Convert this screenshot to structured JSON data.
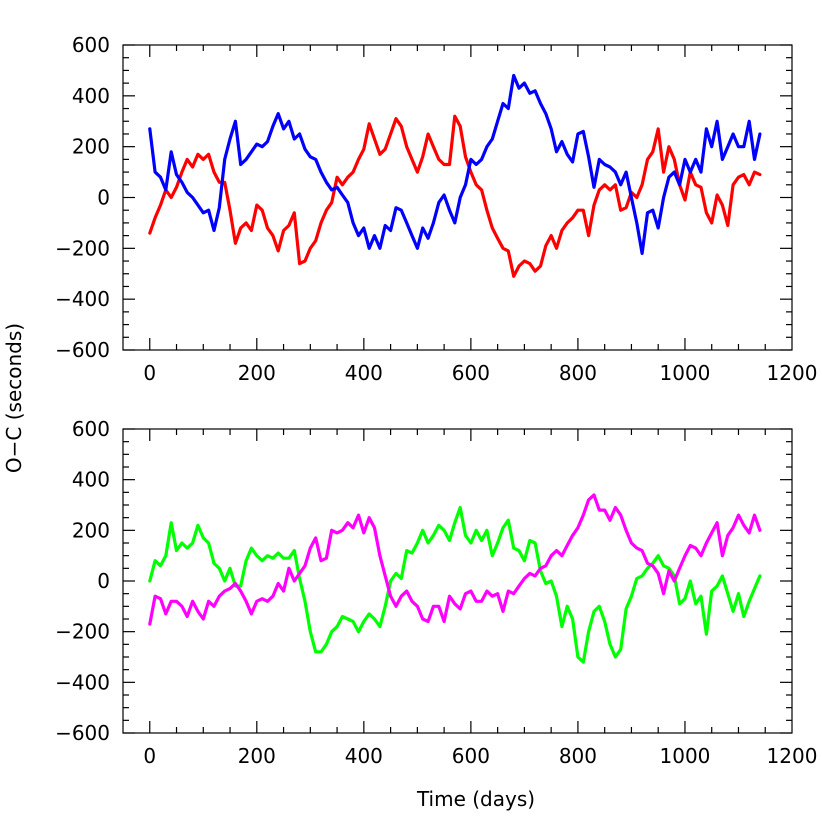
{
  "y_axis_title": "O−C  (seconds)",
  "chart_data": [
    {
      "type": "line",
      "title": "",
      "xlabel": "",
      "ylabel": "O−C  (seconds)",
      "xlim": [
        -50,
        1200
      ],
      "ylim": [
        -600,
        600
      ],
      "xticks": [
        "0",
        "200",
        "400",
        "600",
        "800",
        "1000",
        "1200"
      ],
      "yticks": [
        "−600",
        "−400",
        "−200",
        "0",
        "200",
        "400",
        "600"
      ],
      "grid": false,
      "series": [
        {
          "color": "#ff0000",
          "x": [
            0,
            10,
            20,
            30,
            40,
            50,
            60,
            70,
            80,
            90,
            100,
            110,
            120,
            130,
            140,
            150,
            160,
            170,
            180,
            190,
            200,
            210,
            220,
            230,
            240,
            250,
            260,
            270,
            280,
            290,
            300,
            310,
            320,
            330,
            340,
            350,
            360,
            370,
            380,
            390,
            400,
            410,
            420,
            430,
            440,
            450,
            460,
            470,
            480,
            490,
            500,
            510,
            520,
            530,
            540,
            550,
            560,
            570,
            580,
            590,
            600,
            610,
            620,
            630,
            640,
            650,
            660,
            670,
            680,
            690,
            700,
            710,
            720,
            730,
            740,
            750,
            760,
            770,
            780,
            790,
            800,
            810,
            820,
            830,
            840,
            850,
            860,
            870,
            880,
            890,
            900,
            910,
            920,
            930,
            940,
            950,
            960,
            970,
            980,
            990,
            1000,
            1010,
            1020,
            1030,
            1040,
            1050,
            1060,
            1070,
            1080,
            1090,
            1100,
            1110,
            1120,
            1130,
            1140
          ],
          "y": [
            -140,
            -80,
            -30,
            30,
            0,
            40,
            100,
            150,
            120,
            170,
            150,
            170,
            100,
            60,
            60,
            -50,
            -180,
            -120,
            -100,
            -130,
            -30,
            -50,
            -120,
            -150,
            -210,
            -130,
            -110,
            -60,
            -260,
            -250,
            -200,
            -170,
            -100,
            -50,
            -20,
            80,
            50,
            80,
            100,
            150,
            190,
            290,
            230,
            170,
            190,
            250,
            310,
            280,
            200,
            150,
            100,
            160,
            250,
            200,
            150,
            130,
            130,
            320,
            280,
            160,
            100,
            50,
            30,
            -50,
            -120,
            -160,
            -200,
            -210,
            -310,
            -270,
            -250,
            -260,
            -290,
            -270,
            -190,
            -150,
            -200,
            -130,
            -100,
            -80,
            -50,
            -50,
            -150,
            -30,
            30,
            50,
            30,
            50,
            -50,
            -40,
            20,
            0,
            50,
            150,
            180,
            270,
            100,
            200,
            150,
            50,
            -10,
            100,
            50,
            40,
            -60,
            -100,
            10,
            -30,
            -110,
            50,
            80,
            90,
            50,
            100,
            90
          ]
        },
        {
          "color": "#0000ff",
          "x": [
            0,
            10,
            20,
            30,
            40,
            50,
            60,
            70,
            80,
            90,
            100,
            110,
            120,
            130,
            140,
            150,
            160,
            170,
            180,
            190,
            200,
            210,
            220,
            230,
            240,
            250,
            260,
            270,
            280,
            290,
            300,
            310,
            320,
            330,
            340,
            350,
            360,
            370,
            380,
            390,
            400,
            410,
            420,
            430,
            440,
            450,
            460,
            470,
            480,
            490,
            500,
            510,
            520,
            530,
            540,
            550,
            560,
            570,
            580,
            590,
            600,
            610,
            620,
            630,
            640,
            650,
            660,
            670,
            680,
            690,
            700,
            710,
            720,
            730,
            740,
            750,
            760,
            770,
            780,
            790,
            800,
            810,
            820,
            830,
            840,
            850,
            860,
            870,
            880,
            890,
            900,
            910,
            920,
            930,
            940,
            950,
            960,
            970,
            980,
            990,
            1000,
            1010,
            1020,
            1030,
            1040,
            1050,
            1060,
            1070,
            1080,
            1090,
            1100,
            1110,
            1120,
            1130,
            1140
          ],
          "y": [
            270,
            100,
            80,
            30,
            180,
            90,
            60,
            20,
            0,
            -30,
            -60,
            -50,
            -130,
            -40,
            150,
            230,
            300,
            130,
            150,
            180,
            210,
            200,
            220,
            280,
            330,
            270,
            300,
            230,
            250,
            190,
            160,
            150,
            100,
            60,
            30,
            40,
            10,
            -20,
            -100,
            -150,
            -120,
            -200,
            -150,
            -200,
            -110,
            -130,
            -40,
            -50,
            -100,
            -150,
            -200,
            -120,
            -160,
            -100,
            -20,
            10,
            -50,
            -100,
            0,
            50,
            150,
            130,
            150,
            200,
            230,
            300,
            370,
            350,
            480,
            430,
            450,
            410,
            420,
            370,
            330,
            270,
            180,
            220,
            170,
            140,
            250,
            260,
            160,
            40,
            150,
            130,
            120,
            100,
            50,
            100,
            0,
            -100,
            -220,
            -60,
            -50,
            -120,
            0,
            80,
            100,
            50,
            150,
            100,
            150,
            100,
            270,
            200,
            300,
            150,
            200,
            250,
            200,
            200,
            300,
            150,
            250
          ]
        }
      ]
    },
    {
      "type": "line",
      "title": "",
      "xlabel": "Time  (days)",
      "ylabel": "O−C  (seconds)",
      "xlim": [
        -50,
        1200
      ],
      "ylim": [
        -600,
        600
      ],
      "xticks": [
        "0",
        "200",
        "400",
        "600",
        "800",
        "1000",
        "1200"
      ],
      "yticks": [
        "−600",
        "−400",
        "−200",
        "0",
        "200",
        "400",
        "600"
      ],
      "grid": false,
      "series": [
        {
          "color": "#00ff00",
          "x": [
            0,
            10,
            20,
            30,
            40,
            50,
            60,
            70,
            80,
            90,
            100,
            110,
            120,
            130,
            140,
            150,
            160,
            170,
            180,
            190,
            200,
            210,
            220,
            230,
            240,
            250,
            260,
            270,
            280,
            290,
            300,
            310,
            320,
            330,
            340,
            350,
            360,
            370,
            380,
            390,
            400,
            410,
            420,
            430,
            440,
            450,
            460,
            470,
            480,
            490,
            500,
            510,
            520,
            530,
            540,
            550,
            560,
            570,
            580,
            590,
            600,
            610,
            620,
            630,
            640,
            650,
            660,
            670,
            680,
            690,
            700,
            710,
            720,
            730,
            740,
            750,
            760,
            770,
            780,
            790,
            800,
            810,
            820,
            830,
            840,
            850,
            860,
            870,
            880,
            890,
            900,
            910,
            920,
            930,
            940,
            950,
            960,
            970,
            980,
            990,
            1000,
            1010,
            1020,
            1030,
            1040,
            1050,
            1060,
            1070,
            1080,
            1090,
            1100,
            1110,
            1120,
            1130,
            1140
          ],
          "y": [
            0,
            80,
            60,
            100,
            230,
            120,
            150,
            130,
            150,
            220,
            170,
            150,
            70,
            50,
            0,
            50,
            -20,
            -20,
            80,
            130,
            100,
            80,
            100,
            90,
            110,
            90,
            90,
            120,
            10,
            -80,
            -200,
            -280,
            -280,
            -250,
            -200,
            -180,
            -140,
            -150,
            -160,
            -200,
            -160,
            -130,
            -150,
            -180,
            -100,
            0,
            30,
            10,
            120,
            110,
            150,
            200,
            150,
            180,
            220,
            200,
            160,
            230,
            290,
            180,
            150,
            200,
            160,
            200,
            100,
            150,
            210,
            240,
            130,
            120,
            80,
            160,
            150,
            40,
            -10,
            0,
            -60,
            -180,
            -100,
            -150,
            -300,
            -320,
            -200,
            -120,
            -100,
            -160,
            -250,
            -300,
            -270,
            -110,
            -60,
            10,
            20,
            50,
            70,
            100,
            60,
            50,
            20,
            -90,
            -70,
            0,
            -90,
            -60,
            -210,
            -40,
            -20,
            20,
            -50,
            -120,
            -50,
            -140,
            -80,
            -30,
            20
          ]
        },
        {
          "color": "#ff00ff",
          "x": [
            0,
            10,
            20,
            30,
            40,
            50,
            60,
            70,
            80,
            90,
            100,
            110,
            120,
            130,
            140,
            150,
            160,
            170,
            180,
            190,
            200,
            210,
            220,
            230,
            240,
            250,
            260,
            270,
            280,
            290,
            300,
            310,
            320,
            330,
            340,
            350,
            360,
            370,
            380,
            390,
            400,
            410,
            420,
            430,
            440,
            450,
            460,
            470,
            480,
            490,
            500,
            510,
            520,
            530,
            540,
            550,
            560,
            570,
            580,
            590,
            600,
            610,
            620,
            630,
            640,
            650,
            660,
            670,
            680,
            690,
            700,
            710,
            720,
            730,
            740,
            750,
            760,
            770,
            780,
            790,
            800,
            810,
            820,
            830,
            840,
            850,
            860,
            870,
            880,
            890,
            900,
            910,
            920,
            930,
            940,
            950,
            960,
            970,
            980,
            990,
            1000,
            1010,
            1020,
            1030,
            1040,
            1050,
            1060,
            1070,
            1080,
            1090,
            1100,
            1110,
            1120,
            1130,
            1140
          ],
          "y": [
            -170,
            -60,
            -70,
            -130,
            -80,
            -80,
            -100,
            -140,
            -80,
            -120,
            -150,
            -80,
            -100,
            -60,
            -40,
            -30,
            -10,
            -40,
            -80,
            -130,
            -80,
            -70,
            -80,
            -60,
            -10,
            -40,
            50,
            0,
            30,
            60,
            130,
            170,
            80,
            90,
            200,
            190,
            200,
            230,
            210,
            260,
            190,
            250,
            210,
            100,
            20,
            -60,
            -100,
            -60,
            -40,
            -80,
            -100,
            -150,
            -160,
            -100,
            -100,
            -160,
            -60,
            -90,
            -110,
            -50,
            -40,
            -80,
            -80,
            -40,
            -60,
            -50,
            -120,
            -40,
            -50,
            -20,
            10,
            30,
            20,
            50,
            60,
            100,
            120,
            100,
            140,
            180,
            210,
            260,
            320,
            340,
            280,
            280,
            240,
            290,
            260,
            200,
            150,
            130,
            120,
            70,
            60,
            30,
            -50,
            40,
            0,
            50,
            100,
            140,
            130,
            100,
            150,
            190,
            230,
            100,
            180,
            210,
            260,
            220,
            190,
            260,
            200
          ]
        }
      ]
    }
  ]
}
